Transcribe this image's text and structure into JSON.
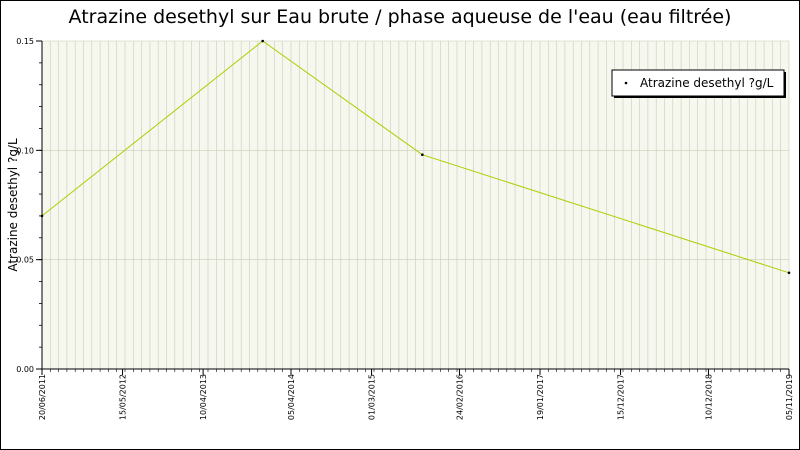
{
  "chart_data": {
    "type": "line",
    "title": "Atrazine desethyl sur Eau brute / phase aqueuse de l'eau (eau filtrée)",
    "ylabel": "Atrazine desethyl ?g/L",
    "xlabel": "",
    "ylim": [
      0,
      0.15
    ],
    "y_ticks": [
      "0.00",
      "0.05",
      "0.10",
      "0.15"
    ],
    "x_range": [
      "2011-06-20",
      "2019-11-05"
    ],
    "x_tick_labels": [
      "20/06/2011",
      "15/05/2012",
      "10/04/2013",
      "05/04/2014",
      "01/03/2015",
      "24/02/2016",
      "19/01/2017",
      "15/12/2017",
      "10/12/2018",
      "05/11/2019"
    ],
    "x_tick_dates": [
      "2011-06-20",
      "2012-05-15",
      "2013-04-10",
      "2014-04-05",
      "2015-03-01",
      "2016-02-24",
      "2017-01-19",
      "2017-12-15",
      "2018-12-10",
      "2019-11-05"
    ],
    "grid": true,
    "legend_position": "top-right",
    "series": [
      {
        "name": "Atrazine desethyl ?g/L",
        "color": "#a8d000",
        "points": [
          {
            "x": "2011-06-20",
            "y": 0.07
          },
          {
            "x": "2013-12-10",
            "y": 0.15
          },
          {
            "x": "2015-09-25",
            "y": 0.098
          },
          {
            "x": "2019-11-05",
            "y": 0.044
          }
        ]
      }
    ]
  },
  "colors": {
    "plot_background": "#f6f7ee",
    "grid": "#c9cdb6",
    "series": "#a8d000"
  }
}
